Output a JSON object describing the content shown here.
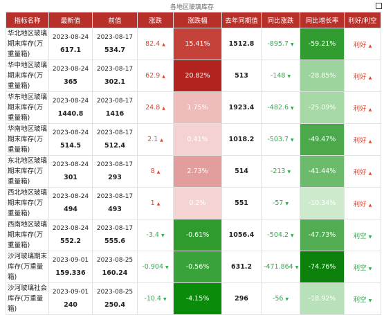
{
  "title": "各地区玻璃库存",
  "table": {
    "header": [
      "指标名称",
      "最新值",
      "前值",
      "涨跌",
      "涨跌幅",
      "去年同期值",
      "同比涨跌",
      "同比增长率",
      "利好/利空"
    ],
    "rows": [
      {
        "name": "华北地区玻璃期末库存(万重量箱)",
        "latest_date": "2023-08-24",
        "latest": "617.1",
        "prev_date": "2023-08-17",
        "prev": "534.7",
        "change": "82.4",
        "change_pct": "15.41%",
        "change_pct_color": "#c4423a",
        "last_year": "1512.8",
        "yoy_change": "-895.7",
        "yoy_pct": "-59.21%",
        "yoy_pct_color": "#319d31",
        "signal": "利好"
      },
      {
        "name": "华中地区玻璃期末库存(万重量箱)",
        "latest_date": "2023-08-24",
        "latest": "365",
        "prev_date": "2023-08-17",
        "prev": "302.1",
        "change": "62.9",
        "change_pct": "20.82%",
        "change_pct_color": "#b2221f",
        "last_year": "513",
        "yoy_change": "-148",
        "yoy_pct": "-28.85%",
        "yoy_pct_color": "#9dd49d",
        "signal": "利好"
      },
      {
        "name": "华东地区玻璃期末库存(万重量箱)",
        "latest_date": "2023-08-24",
        "latest": "1440.8",
        "prev_date": "2023-08-17",
        "prev": "1416",
        "change": "24.8",
        "change_pct": "1.75%",
        "change_pct_color": "#efbcbc",
        "last_year": "1923.4",
        "yoy_change": "-482.6",
        "yoy_pct": "-25.09%",
        "yoy_pct_color": "#a7d9a7",
        "signal": "利好"
      },
      {
        "name": "华南地区玻璃期末库存(万重量箱)",
        "latest_date": "2023-08-24",
        "latest": "514.5",
        "prev_date": "2023-08-17",
        "prev": "512.4",
        "change": "2.1",
        "change_pct": "0.41%",
        "change_pct_color": "#f5d2d2",
        "last_year": "1018.2",
        "yoy_change": "-503.7",
        "yoy_pct": "-49.47%",
        "yoy_pct_color": "#4ba94b",
        "signal": "利好"
      },
      {
        "name": "东北地区玻璃期末库存(万重量箱)",
        "latest_date": "2023-08-24",
        "latest": "301",
        "prev_date": "2023-08-17",
        "prev": "293",
        "change": "8",
        "change_pct": "2.73%",
        "change_pct_color": "#e29d9d",
        "last_year": "514",
        "yoy_change": "-213",
        "yoy_pct": "-41.44%",
        "yoy_pct_color": "#6cbb6c",
        "signal": "利好"
      },
      {
        "name": "西北地区玻璃期末库存(万重量箱)",
        "latest_date": "2023-08-24",
        "latest": "494",
        "prev_date": "2023-08-17",
        "prev": "493",
        "change": "1",
        "change_pct": "0.2%",
        "change_pct_color": "#f5d4d4",
        "last_year": "551",
        "yoy_change": "-57",
        "yoy_pct": "-10.34%",
        "yoy_pct_color": "#cdeacd",
        "signal": "利好"
      },
      {
        "name": "西南地区玻璃期末库存(万重量箱)",
        "latest_date": "2023-08-24",
        "latest": "552.2",
        "prev_date": "2023-08-17",
        "prev": "555.6",
        "change": "-3.4",
        "change_pct": "-0.61%",
        "change_pct_color": "#2f9b2f",
        "last_year": "1056.4",
        "yoy_change": "-504.2",
        "yoy_pct": "-47.73%",
        "yoy_pct_color": "#52ad52",
        "signal": "利空"
      },
      {
        "name": "沙河玻璃期末库存(万重量箱)",
        "latest_date": "2023-09-01",
        "latest": "159.336",
        "prev_date": "2023-08-25",
        "prev": "160.24",
        "change": "-0.904",
        "change_pct": "-0.56%",
        "change_pct_color": "#3aa23a",
        "last_year": "631.2",
        "yoy_change": "-471.864",
        "yoy_pct": "-74.76%",
        "yoy_pct_color": "#0b800b",
        "signal": "利空"
      },
      {
        "name": "沙河玻璃社会库存(万重量箱)",
        "latest_date": "2023-09-01",
        "latest": "240",
        "prev_date": "2023-08-25",
        "prev": "250.4",
        "change": "-10.4",
        "change_pct": "-4.15%",
        "change_pct_color": "#0a8c0a",
        "last_year": "296",
        "yoy_change": "-56",
        "yoy_pct": "-18.92%",
        "yoy_pct_color": "#b9e1b9",
        "signal": "利空"
      }
    ]
  }
}
